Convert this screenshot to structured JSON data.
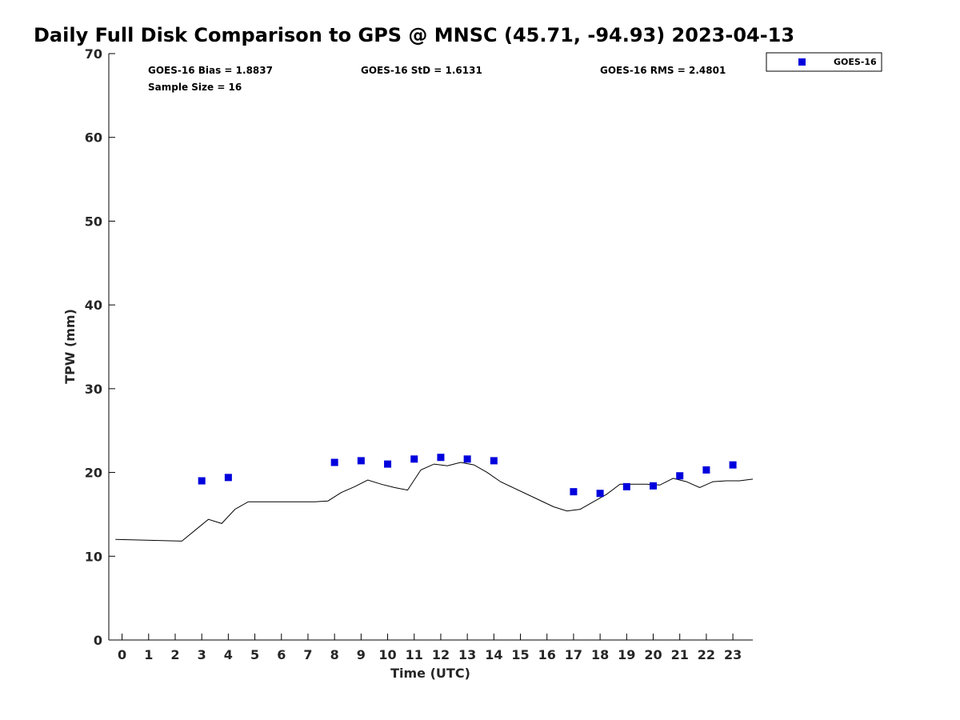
{
  "title": "Daily Full Disk Comparison to GPS @ MNSC (45.71, -94.93) 2023-04-13",
  "stats": {
    "bias": "GOES-16 Bias = 1.8837",
    "std": "GOES-16 StD = 1.6131",
    "rms": "GOES-16 RMS = 2.4801",
    "sample": "Sample Size = 16"
  },
  "chart_data": {
    "type": "scatter",
    "xlabel": "Time (UTC)",
    "ylabel": "TPW (mm)",
    "xlim": [
      -0.5,
      23.75
    ],
    "ylim": [
      0,
      70
    ],
    "xticks": [
      0,
      1,
      2,
      3,
      4,
      5,
      6,
      7,
      8,
      9,
      10,
      11,
      12,
      13,
      14,
      15,
      16,
      17,
      18,
      19,
      20,
      21,
      22,
      23
    ],
    "yticks": [
      0,
      10,
      20,
      30,
      40,
      50,
      60,
      70
    ],
    "grid": false,
    "legend_position": "top-right, outside plot",
    "series": [
      {
        "name": "GOES-16",
        "kind": "markers",
        "color": "#0000dd",
        "marker": "square",
        "points": [
          [
            3,
            19.0
          ],
          [
            4,
            19.4
          ],
          [
            8,
            21.2
          ],
          [
            9,
            21.4
          ],
          [
            10,
            21.0
          ],
          [
            11,
            21.6
          ],
          [
            12,
            21.8
          ],
          [
            13,
            21.6
          ],
          [
            14,
            21.4
          ],
          [
            17,
            17.7
          ],
          [
            18,
            17.5
          ],
          [
            19,
            18.3
          ],
          [
            20,
            18.4
          ],
          [
            21,
            19.6
          ],
          [
            22,
            20.3
          ],
          [
            23,
            20.9
          ]
        ]
      },
      {
        "kind": "line",
        "color": "#000000",
        "points": [
          [
            -0.25,
            12.0
          ],
          [
            2.25,
            11.8
          ],
          [
            3.25,
            14.4
          ],
          [
            3.75,
            13.9
          ],
          [
            4.25,
            15.6
          ],
          [
            4.75,
            16.5
          ],
          [
            7.25,
            16.5
          ],
          [
            7.75,
            16.6
          ],
          [
            8.25,
            17.6
          ],
          [
            8.75,
            18.3
          ],
          [
            9.25,
            19.1
          ],
          [
            9.75,
            18.6
          ],
          [
            10.25,
            18.2
          ],
          [
            10.75,
            17.9
          ],
          [
            11.25,
            20.3
          ],
          [
            11.75,
            21.0
          ],
          [
            12.25,
            20.8
          ],
          [
            12.75,
            21.2
          ],
          [
            13.25,
            20.9
          ],
          [
            13.75,
            20.0
          ],
          [
            14.25,
            18.9
          ],
          [
            16.25,
            15.9
          ],
          [
            16.75,
            15.4
          ],
          [
            17.25,
            15.6
          ],
          [
            17.75,
            16.5
          ],
          [
            18.25,
            17.4
          ],
          [
            18.75,
            18.6
          ],
          [
            19.25,
            18.6
          ],
          [
            19.75,
            18.6
          ],
          [
            20.25,
            18.5
          ],
          [
            20.75,
            19.3
          ],
          [
            21.25,
            18.9
          ],
          [
            21.75,
            18.2
          ],
          [
            22.25,
            18.9
          ],
          [
            22.75,
            19.0
          ],
          [
            23.25,
            19.0
          ],
          [
            23.75,
            19.2
          ]
        ]
      }
    ]
  }
}
